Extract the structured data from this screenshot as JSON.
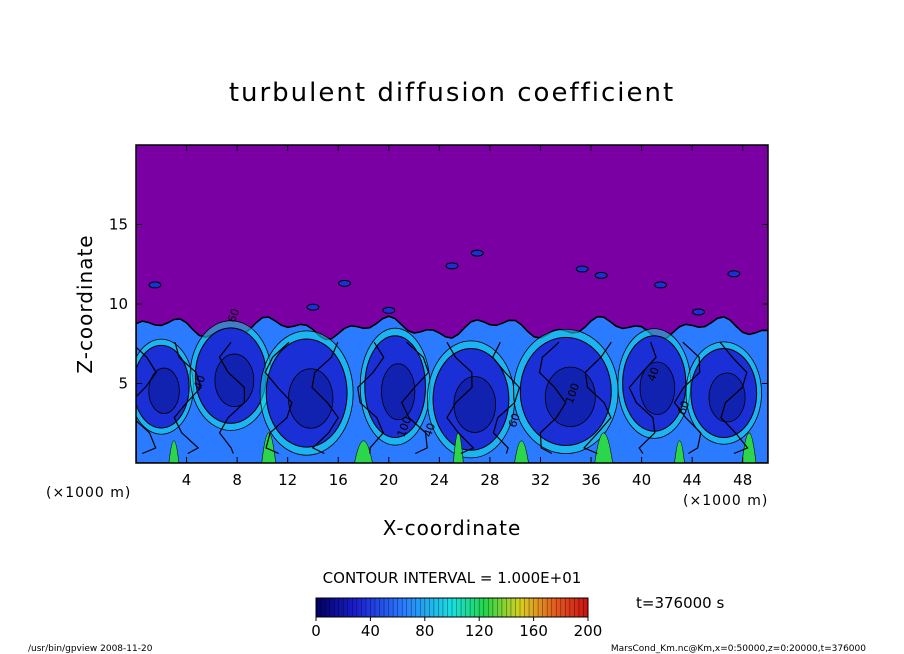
{
  "chart_data": {
    "type": "heatmap",
    "title": "turbulent diffusion coefficient",
    "xlabel": "X-coordinate",
    "ylabel": "Z-coordinate",
    "x_unit": "(×1000 m)",
    "y_unit": "(×1000 m)",
    "xlim": [
      0,
      50
    ],
    "ylim": [
      0,
      20
    ],
    "x_ticks": [
      "4",
      "8",
      "12",
      "16",
      "20",
      "24",
      "28",
      "32",
      "36",
      "40",
      "44",
      "48"
    ],
    "y_ticks": [
      "5",
      "10",
      "15"
    ],
    "contour_interval_label": "CONTOUR INTERVAL = 1.000E+01",
    "colorbar": {
      "range": [
        0,
        200
      ],
      "ticks": [
        "0",
        "40",
        "80",
        "120",
        "160",
        "200"
      ]
    },
    "time_label": "t=376000 s",
    "contour_labels": [
      "40",
      "60",
      "100"
    ],
    "footer_left": "/usr/bin/gpview   2008-11-20",
    "footer_right": "MarsCond_Km.nc@Km,x=0:50000,z=0:20000,t=376000",
    "mixed_layer_top_km": 8.5,
    "background_value": 0
  },
  "colors": {
    "background": "#7b00a3",
    "low": "#1a2fd6",
    "mid": "#2a7bff",
    "high": "#12e6e6",
    "peak": "#2bd64d"
  }
}
